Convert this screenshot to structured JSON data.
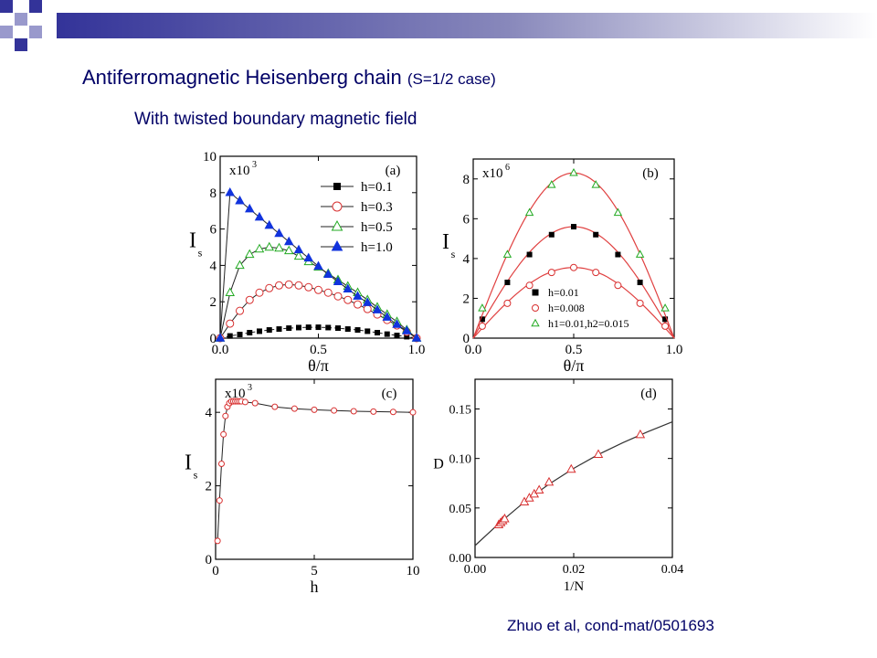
{
  "slide": {
    "title_main": "Antiferromagnetic Heisenberg chain",
    "title_note": "(S=1/2 case)",
    "subtitle": "With twisted boundary magnetic field",
    "citation": "Zhuo et al, cond-mat/0501693",
    "colors": {
      "text": "#000066",
      "deco_dark": "#333399",
      "deco_light": "#9999cc"
    }
  },
  "chart_data": [
    {
      "panel": "(a)",
      "type": "line",
      "xlabel": "θ/π",
      "ylabel": "I",
      "ylabel_sub": "s",
      "multiplier": "x10",
      "multiplier_exp": "3",
      "xlim": [
        0,
        1
      ],
      "ylim": [
        0,
        10
      ],
      "xticks": [
        "0.0",
        "0.5",
        "1.0"
      ],
      "yticks": [
        "0",
        "2",
        "4",
        "6",
        "8",
        "10"
      ],
      "legend": "top-right",
      "series": [
        {
          "name": "h=0.1",
          "marker": "square-filled",
          "color": "#000000",
          "dashed": true,
          "x": [
            0,
            0.05,
            0.1,
            0.15,
            0.2,
            0.25,
            0.3,
            0.35,
            0.4,
            0.45,
            0.5,
            0.55,
            0.6,
            0.65,
            0.7,
            0.75,
            0.8,
            0.85,
            0.9,
            0.95,
            1.0
          ],
          "y": [
            0,
            0.12,
            0.2,
            0.3,
            0.38,
            0.45,
            0.5,
            0.55,
            0.58,
            0.6,
            0.6,
            0.58,
            0.55,
            0.5,
            0.45,
            0.38,
            0.3,
            0.22,
            0.15,
            0.08,
            0
          ]
        },
        {
          "name": "h=0.3",
          "marker": "circle-open",
          "color": "#d83030",
          "dashed": false,
          "x": [
            0,
            0.05,
            0.1,
            0.15,
            0.2,
            0.25,
            0.3,
            0.35,
            0.4,
            0.45,
            0.5,
            0.55,
            0.6,
            0.65,
            0.7,
            0.75,
            0.8,
            0.85,
            0.9,
            0.95,
            1.0
          ],
          "y": [
            0,
            0.8,
            1.5,
            2.1,
            2.5,
            2.75,
            2.9,
            2.95,
            2.9,
            2.8,
            2.65,
            2.5,
            2.3,
            2.1,
            1.85,
            1.6,
            1.3,
            1.0,
            0.7,
            0.35,
            0
          ]
        },
        {
          "name": "h=0.5",
          "marker": "triangle-open",
          "color": "#22aa22",
          "dashed": false,
          "x": [
            0,
            0.05,
            0.1,
            0.15,
            0.2,
            0.25,
            0.3,
            0.35,
            0.4,
            0.45,
            0.5,
            0.55,
            0.6,
            0.65,
            0.7,
            0.75,
            0.8,
            0.85,
            0.9,
            0.95,
            1.0
          ],
          "y": [
            0,
            2.5,
            4.0,
            4.6,
            4.9,
            5.0,
            4.95,
            4.8,
            4.5,
            4.2,
            3.9,
            3.55,
            3.2,
            2.85,
            2.5,
            2.1,
            1.7,
            1.3,
            0.9,
            0.45,
            0
          ]
        },
        {
          "name": "h=1.0",
          "marker": "triangle-filled",
          "color": "#1133dd",
          "dashed": false,
          "x": [
            0,
            0.05,
            0.1,
            0.15,
            0.2,
            0.25,
            0.3,
            0.35,
            0.4,
            0.45,
            0.5,
            0.55,
            0.6,
            0.65,
            0.7,
            0.75,
            0.8,
            0.85,
            0.9,
            0.95,
            1.0
          ],
          "y": [
            0,
            8.0,
            7.55,
            7.1,
            6.65,
            6.2,
            5.75,
            5.3,
            4.85,
            4.4,
            3.95,
            3.5,
            3.1,
            2.7,
            2.3,
            1.95,
            1.55,
            1.15,
            0.75,
            0.4,
            0
          ]
        }
      ]
    },
    {
      "panel": "(b)",
      "type": "line",
      "xlabel": "θ/π",
      "ylabel": "I",
      "ylabel_sub": "s",
      "multiplier": "x10",
      "multiplier_exp": "6",
      "xlim": [
        0,
        1
      ],
      "ylim": [
        0,
        9
      ],
      "xticks": [
        "0.0",
        "0.5",
        "1.0"
      ],
      "yticks": [
        "0",
        "2",
        "4",
        "6",
        "8"
      ],
      "legend": "bottom-center",
      "series": [
        {
          "name": "h=0.01",
          "marker": "square-filled",
          "color": "#000000",
          "curve_peak": 5.6,
          "x": [
            0.045,
            0.17,
            0.28,
            0.39,
            0.5,
            0.61,
            0.72,
            0.83,
            0.955
          ],
          "y": [
            0.95,
            2.8,
            4.2,
            5.2,
            5.6,
            5.2,
            4.2,
            2.8,
            0.95
          ]
        },
        {
          "name": "h=0.008",
          "marker": "circle-open",
          "color": "#d83030",
          "curve_peak": 3.55,
          "x": [
            0.045,
            0.17,
            0.28,
            0.39,
            0.5,
            0.61,
            0.72,
            0.83,
            0.955
          ],
          "y": [
            0.6,
            1.75,
            2.65,
            3.3,
            3.55,
            3.3,
            2.65,
            1.75,
            0.6
          ]
        },
        {
          "name": "h1=0.01,h2=0.015",
          "marker": "triangle-open",
          "color": "#22aa22",
          "curve_peak": 8.3,
          "x": [
            0.045,
            0.17,
            0.28,
            0.39,
            0.5,
            0.61,
            0.72,
            0.83,
            0.955
          ],
          "y": [
            1.5,
            4.2,
            6.3,
            7.7,
            8.3,
            7.7,
            6.3,
            4.2,
            1.5
          ]
        }
      ]
    },
    {
      "panel": "(c)",
      "type": "line",
      "xlabel": "h",
      "ylabel": "I",
      "ylabel_sub": "s",
      "multiplier": "x10",
      "multiplier_exp": "3",
      "xlim": [
        0,
        10
      ],
      "ylim": [
        0,
        4.9
      ],
      "xticks": [
        "0",
        "5",
        "10"
      ],
      "yticks": [
        "0",
        "2",
        "4"
      ],
      "series": [
        {
          "marker": "circle-open",
          "color": "#d83030",
          "x": [
            0.1,
            0.2,
            0.3,
            0.4,
            0.5,
            0.6,
            0.7,
            0.8,
            0.9,
            1.0,
            1.1,
            1.2,
            1.3,
            1.5,
            2.0,
            3.0,
            4.0,
            5.0,
            6.0,
            7.0,
            8.0,
            9.0,
            10.0
          ],
          "y": [
            0.5,
            1.6,
            2.6,
            3.4,
            3.9,
            4.15,
            4.25,
            4.3,
            4.3,
            4.3,
            4.3,
            4.3,
            4.3,
            4.28,
            4.25,
            4.15,
            4.1,
            4.07,
            4.05,
            4.03,
            4.02,
            4.01,
            4.0
          ]
        }
      ]
    },
    {
      "panel": "(d)",
      "type": "line",
      "xlabel": "1/N",
      "ylabel": "D",
      "xlim": [
        0,
        0.04
      ],
      "ylim": [
        0,
        0.18
      ],
      "xticks": [
        "0.00",
        "0.02",
        "0.04"
      ],
      "yticks": [
        "0.00",
        "0.05",
        "0.10",
        "0.15"
      ],
      "fit_curve": {
        "x": [
          0,
          0.005,
          0.01,
          0.015,
          0.02,
          0.025,
          0.03,
          0.035,
          0.04
        ],
        "y": [
          0.012,
          0.035,
          0.056,
          0.074,
          0.09,
          0.104,
          0.116,
          0.127,
          0.137
        ]
      },
      "series": [
        {
          "marker": "triangle-open",
          "color": "#d83030",
          "x": [
            0.0048,
            0.0052,
            0.0056,
            0.006,
            0.01,
            0.011,
            0.012,
            0.013,
            0.015,
            0.0195,
            0.025,
            0.0335
          ],
          "y": [
            0.033,
            0.035,
            0.037,
            0.039,
            0.056,
            0.06,
            0.064,
            0.068,
            0.076,
            0.089,
            0.104,
            0.124
          ]
        }
      ]
    }
  ]
}
